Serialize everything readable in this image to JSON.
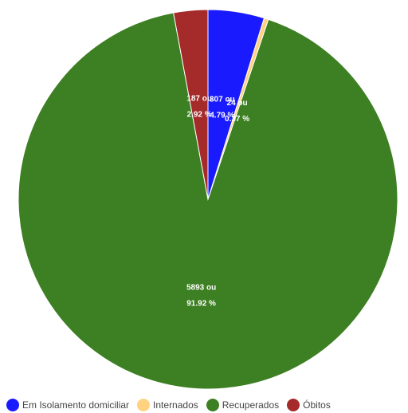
{
  "chart_data": {
    "type": "pie",
    "title": "",
    "series": [
      {
        "name": "Em Isolamento domiciliar",
        "value": 307,
        "percent": "4.79",
        "color": "#1a1aff",
        "label_line1": "307 ou",
        "label_line2": "4.79 %"
      },
      {
        "name": "Internados",
        "value": 24,
        "percent": "0.37",
        "color": "#ffd27f",
        "label_line1": "24 ou",
        "label_line2": "0.37 %"
      },
      {
        "name": "Recuperados",
        "value": 5893,
        "percent": "91.92",
        "color": "#3d7f23",
        "label_line1": "5893 ou",
        "label_line2": "91.92 %"
      },
      {
        "name": "Óbitos",
        "value": 187,
        "percent": "2.92",
        "color": "#a52a2a",
        "label_line1": "187 ou",
        "label_line2": "2.92 %"
      }
    ],
    "legend_position": "bottom"
  }
}
